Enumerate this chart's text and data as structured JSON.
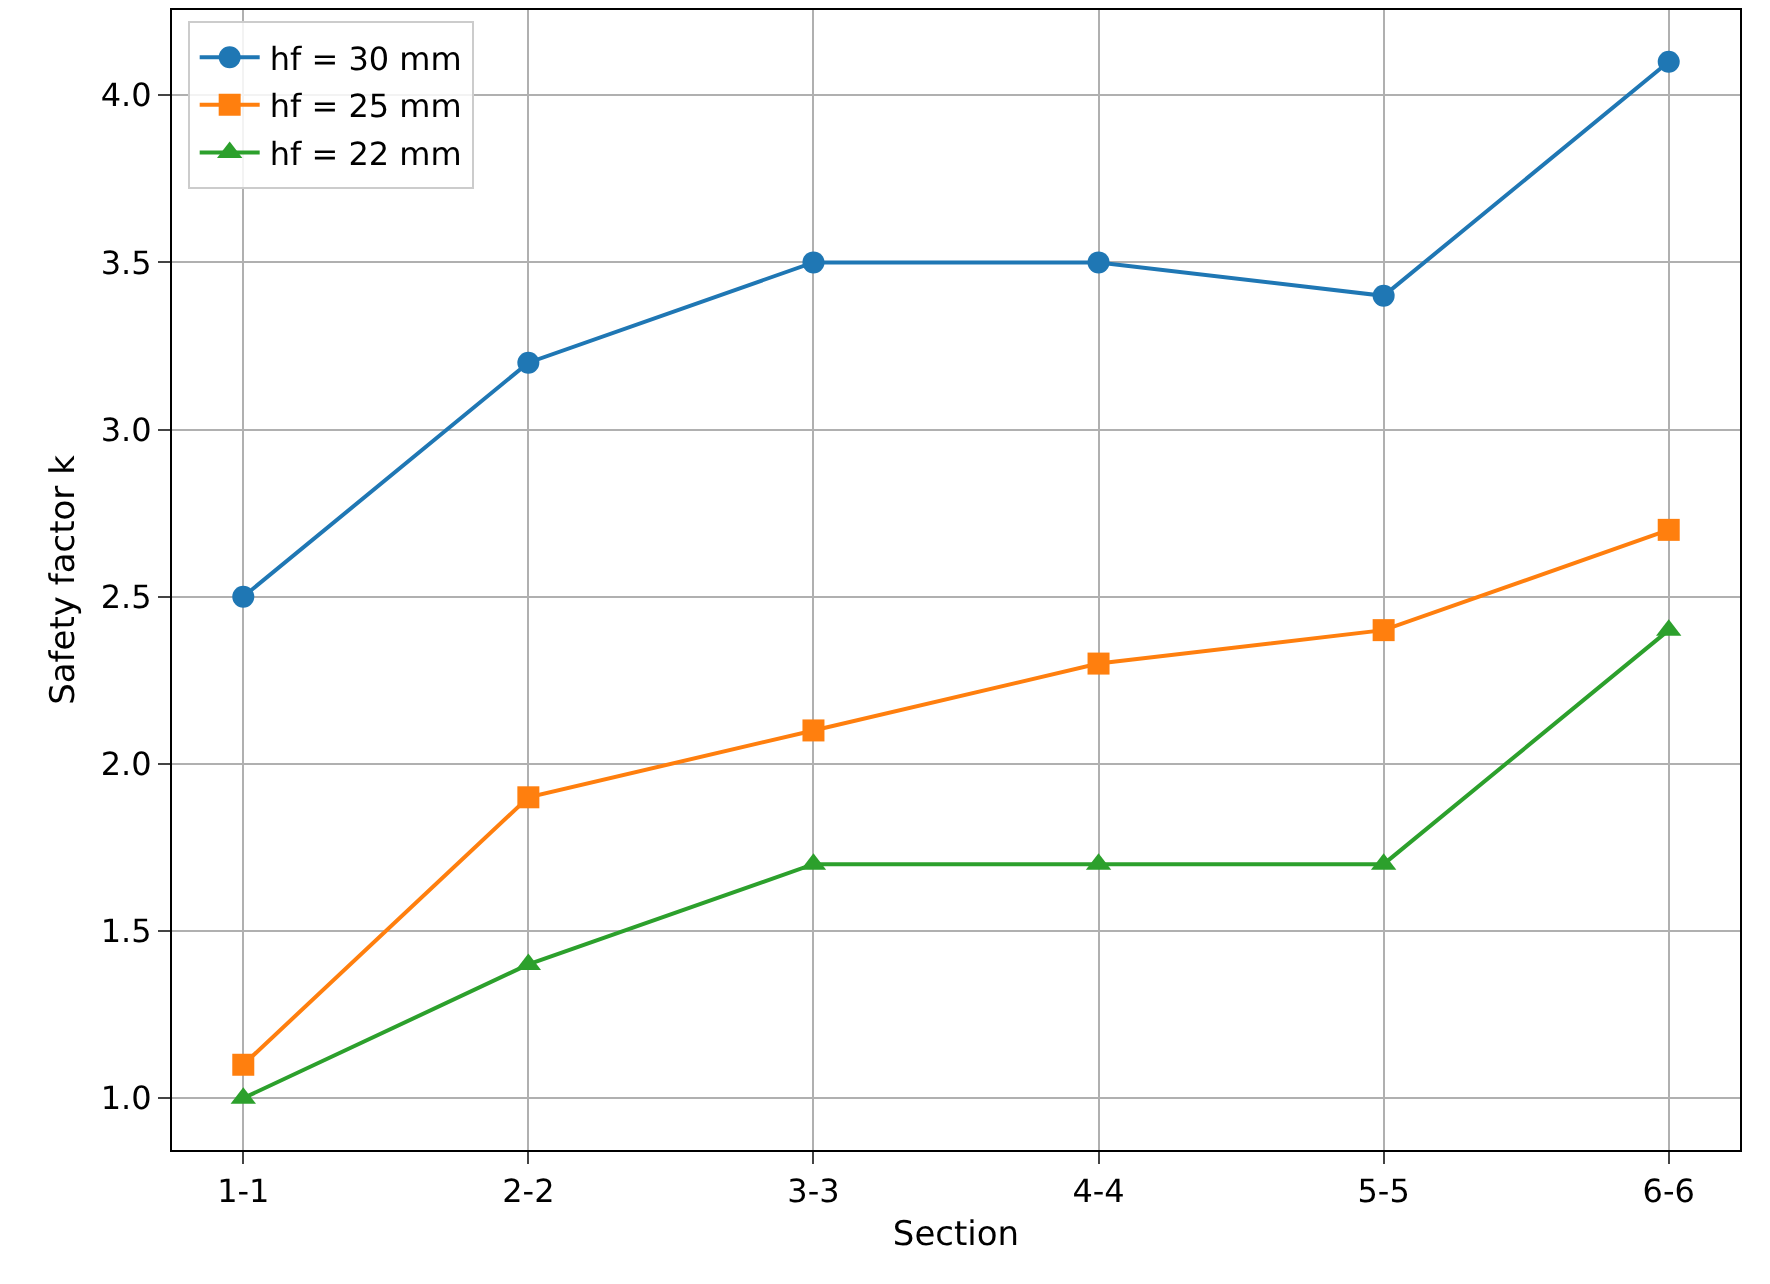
{
  "chart_data": {
    "type": "line",
    "xlabel": "Section",
    "ylabel": "Safety factor k",
    "categories": [
      "1-1",
      "2-2",
      "3-3",
      "4-4",
      "5-5",
      "6-6"
    ],
    "series": [
      {
        "name": "hf = 30 mm",
        "color": "#1f77b4",
        "marker": "circle",
        "values": [
          2.5,
          3.2,
          3.5,
          3.5,
          3.4,
          4.1
        ]
      },
      {
        "name": "hf = 25 mm",
        "color": "#ff7f0e",
        "marker": "square",
        "values": [
          1.1,
          1.9,
          2.1,
          2.3,
          2.4,
          2.7
        ]
      },
      {
        "name": "hf = 22 mm",
        "color": "#2ca02c",
        "marker": "triangle",
        "values": [
          1.0,
          1.4,
          1.7,
          1.7,
          1.7,
          2.4
        ]
      }
    ],
    "ylim": [
      0.845,
      4.255
    ],
    "yticks": [
      {
        "value": 1,
        "label": "1.0"
      },
      {
        "value": 1.5,
        "label": "1.5"
      },
      {
        "value": 2,
        "label": "2.0"
      },
      {
        "value": 2.5,
        "label": "2.5"
      },
      {
        "value": 3,
        "label": "3.0"
      },
      {
        "value": 3.5,
        "label": "3.5"
      },
      {
        "value": 4,
        "label": "4.0"
      }
    ],
    "grid": true,
    "legend": "top left",
    "line_style": "solid"
  }
}
